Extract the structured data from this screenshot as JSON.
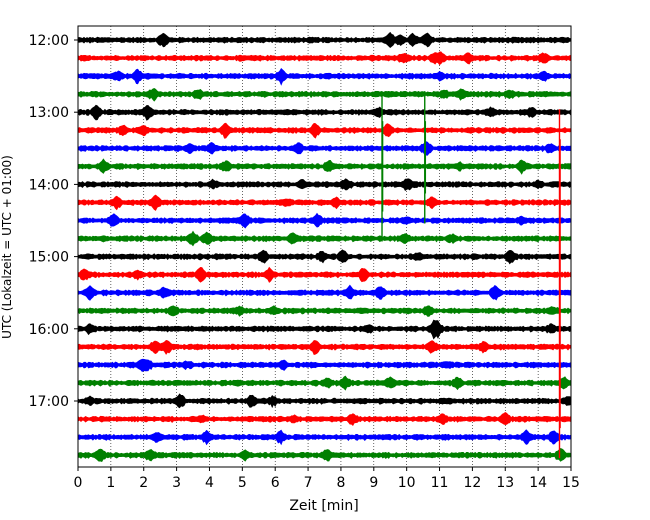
{
  "chart_data": {
    "type": "line",
    "title": "",
    "xlabel": "Zeit  [min]",
    "ylabel": "UTC (Lokalzeit = UTC + 01:00)",
    "xlim": [
      0,
      15
    ],
    "x_ticks": [
      0,
      1,
      2,
      3,
      4,
      5,
      6,
      7,
      8,
      9,
      10,
      11,
      12,
      13,
      14,
      15
    ],
    "x_tick_labels": [
      "0",
      "1",
      "2",
      "3",
      "4",
      "5",
      "6",
      "7",
      "8",
      "9",
      "10",
      "11",
      "12",
      "13",
      "14",
      "15"
    ],
    "y_tick_labels": [
      {
        "label": "12:00",
        "row": 0
      },
      {
        "label": "13:00",
        "row": 4
      },
      {
        "label": "14:00",
        "row": 8
      },
      {
        "label": "15:00",
        "row": 12
      },
      {
        "label": "16:00",
        "row": 16
      },
      {
        "label": "17:00",
        "row": 20
      }
    ],
    "row_minutes": 15,
    "row_count": 24,
    "start_time": "12:00",
    "grid": "vertical dotted at each minute",
    "trace_colors": [
      "#000000",
      "#ff0000",
      "#0000ff",
      "#008000"
    ],
    "traces": [
      {
        "start": "12:00",
        "color": "#000000"
      },
      {
        "start": "12:15",
        "color": "#ff0000"
      },
      {
        "start": "12:30",
        "color": "#0000ff"
      },
      {
        "start": "12:45",
        "color": "#008000"
      },
      {
        "start": "13:00",
        "color": "#000000"
      },
      {
        "start": "13:15",
        "color": "#ff0000"
      },
      {
        "start": "13:30",
        "color": "#0000ff"
      },
      {
        "start": "13:45",
        "color": "#008000"
      },
      {
        "start": "14:00",
        "color": "#000000"
      },
      {
        "start": "14:15",
        "color": "#ff0000"
      },
      {
        "start": "14:30",
        "color": "#0000ff"
      },
      {
        "start": "14:45",
        "color": "#008000"
      },
      {
        "start": "15:00",
        "color": "#000000"
      },
      {
        "start": "15:15",
        "color": "#ff0000"
      },
      {
        "start": "15:30",
        "color": "#0000ff"
      },
      {
        "start": "15:45",
        "color": "#008000"
      },
      {
        "start": "16:00",
        "color": "#000000"
      },
      {
        "start": "16:15",
        "color": "#ff0000"
      },
      {
        "start": "16:30",
        "color": "#0000ff"
      },
      {
        "start": "16:45",
        "color": "#008000"
      },
      {
        "start": "17:00",
        "color": "#000000"
      },
      {
        "start": "17:15",
        "color": "#ff0000"
      },
      {
        "start": "17:30",
        "color": "#0000ff"
      },
      {
        "start": "17:45",
        "color": "#008000"
      }
    ],
    "events": [
      {
        "row": 3,
        "minute": 9.25,
        "color": "#008000",
        "to_row": 11
      },
      {
        "row": 3,
        "minute": 10.55,
        "color": "#008000",
        "to_row": 10
      },
      {
        "row": 4,
        "minute": 14.65,
        "color": "#ff0000",
        "to_row": 23
      }
    ]
  }
}
